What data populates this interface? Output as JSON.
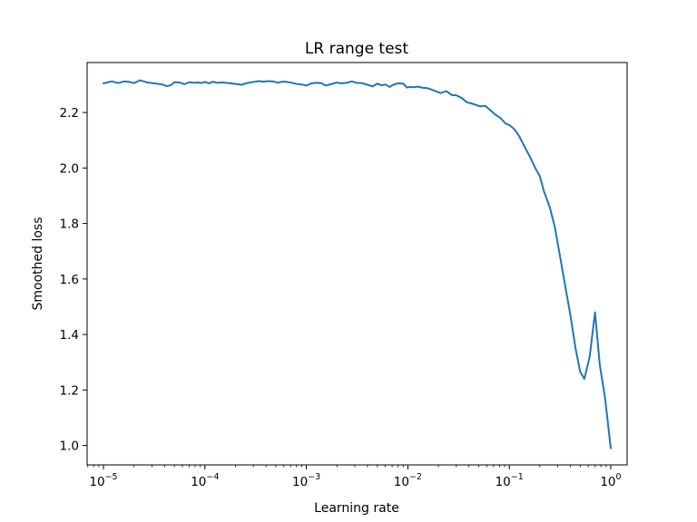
{
  "chart_data": {
    "type": "line",
    "title": "LR range test",
    "xlabel": "Learning rate",
    "ylabel": "Smoothed loss",
    "xscale": "log",
    "xlim": [
      6.9e-06,
      1.45
    ],
    "ylim": [
      0.93,
      2.38
    ],
    "grid": false,
    "legend": "none",
    "line_color": "#1f77b4",
    "xticks": [
      {
        "value": 1e-05,
        "base": "10",
        "exp": "−5"
      },
      {
        "value": 0.0001,
        "base": "10",
        "exp": "−4"
      },
      {
        "value": 0.001,
        "base": "10",
        "exp": "−3"
      },
      {
        "value": 0.01,
        "base": "10",
        "exp": "−2"
      },
      {
        "value": 0.1,
        "base": "10",
        "exp": "−1"
      },
      {
        "value": 1,
        "base": "10",
        "exp": "0"
      }
    ],
    "yticks": [
      {
        "value": 1.0,
        "label": "1.0"
      },
      {
        "value": 1.2,
        "label": "1.2"
      },
      {
        "value": 1.4,
        "label": "1.4"
      },
      {
        "value": 1.6,
        "label": "1.6"
      },
      {
        "value": 1.8,
        "label": "1.8"
      },
      {
        "value": 2.0,
        "label": "2.0"
      },
      {
        "value": 2.2,
        "label": "2.2"
      }
    ],
    "series": [
      {
        "x": [
          1e-05,
          1.2e-05,
          1.4e-05,
          1.6e-05,
          1.8e-05,
          2e-05,
          2.3e-05,
          2.7e-05,
          3.2e-05,
          3.8e-05,
          4.2e-05,
          4.6e-05,
          5e-05,
          5.6e-05,
          6.3e-05,
          7e-05,
          7.8e-05,
          8.5e-05,
          9.2e-05,
          0.0001,
          0.00011,
          0.00012,
          0.00013,
          0.00015,
          0.00017,
          0.0002,
          0.00023,
          0.00026,
          0.0003,
          0.00034,
          0.00038,
          0.00042,
          0.00047,
          0.00052,
          0.00058,
          0.00065,
          0.00072,
          0.0008,
          0.0009,
          0.001,
          0.00112,
          0.00125,
          0.0014,
          0.00155,
          0.00175,
          0.002,
          0.0022,
          0.0025,
          0.0028,
          0.0031,
          0.0035,
          0.004,
          0.0045,
          0.005,
          0.0055,
          0.006,
          0.0066,
          0.0072,
          0.008,
          0.009,
          0.0098,
          0.0105,
          0.0115,
          0.0125,
          0.014,
          0.0155,
          0.017,
          0.019,
          0.021,
          0.024,
          0.027,
          0.03,
          0.034,
          0.038,
          0.042,
          0.047,
          0.052,
          0.058,
          0.065,
          0.073,
          0.082,
          0.092,
          0.1,
          0.112,
          0.125,
          0.14,
          0.16,
          0.18,
          0.2,
          0.22,
          0.25,
          0.28,
          0.31,
          0.35,
          0.4,
          0.45,
          0.5,
          0.55,
          0.62,
          0.7,
          0.78,
          0.88,
          1.0
        ],
        "y": [
          2.305,
          2.312,
          2.306,
          2.312,
          2.31,
          2.306,
          2.316,
          2.308,
          2.305,
          2.301,
          2.295,
          2.298,
          2.309,
          2.308,
          2.302,
          2.309,
          2.307,
          2.308,
          2.306,
          2.31,
          2.305,
          2.311,
          2.307,
          2.308,
          2.306,
          2.303,
          2.3,
          2.306,
          2.31,
          2.313,
          2.311,
          2.313,
          2.312,
          2.307,
          2.311,
          2.31,
          2.307,
          2.303,
          2.301,
          2.297,
          2.305,
          2.307,
          2.306,
          2.297,
          2.302,
          2.308,
          2.305,
          2.307,
          2.312,
          2.307,
          2.306,
          2.3,
          2.294,
          2.304,
          2.298,
          2.301,
          2.292,
          2.3,
          2.305,
          2.304,
          2.29,
          2.292,
          2.291,
          2.293,
          2.289,
          2.288,
          2.283,
          2.276,
          2.27,
          2.277,
          2.263,
          2.262,
          2.252,
          2.237,
          2.233,
          2.227,
          2.222,
          2.224,
          2.208,
          2.192,
          2.18,
          2.16,
          2.155,
          2.14,
          2.115,
          2.08,
          2.04,
          2.0,
          1.97,
          1.915,
          1.86,
          1.79,
          1.7,
          1.59,
          1.47,
          1.35,
          1.265,
          1.24,
          1.32,
          1.48,
          1.29,
          1.17,
          0.99
        ]
      }
    ]
  }
}
